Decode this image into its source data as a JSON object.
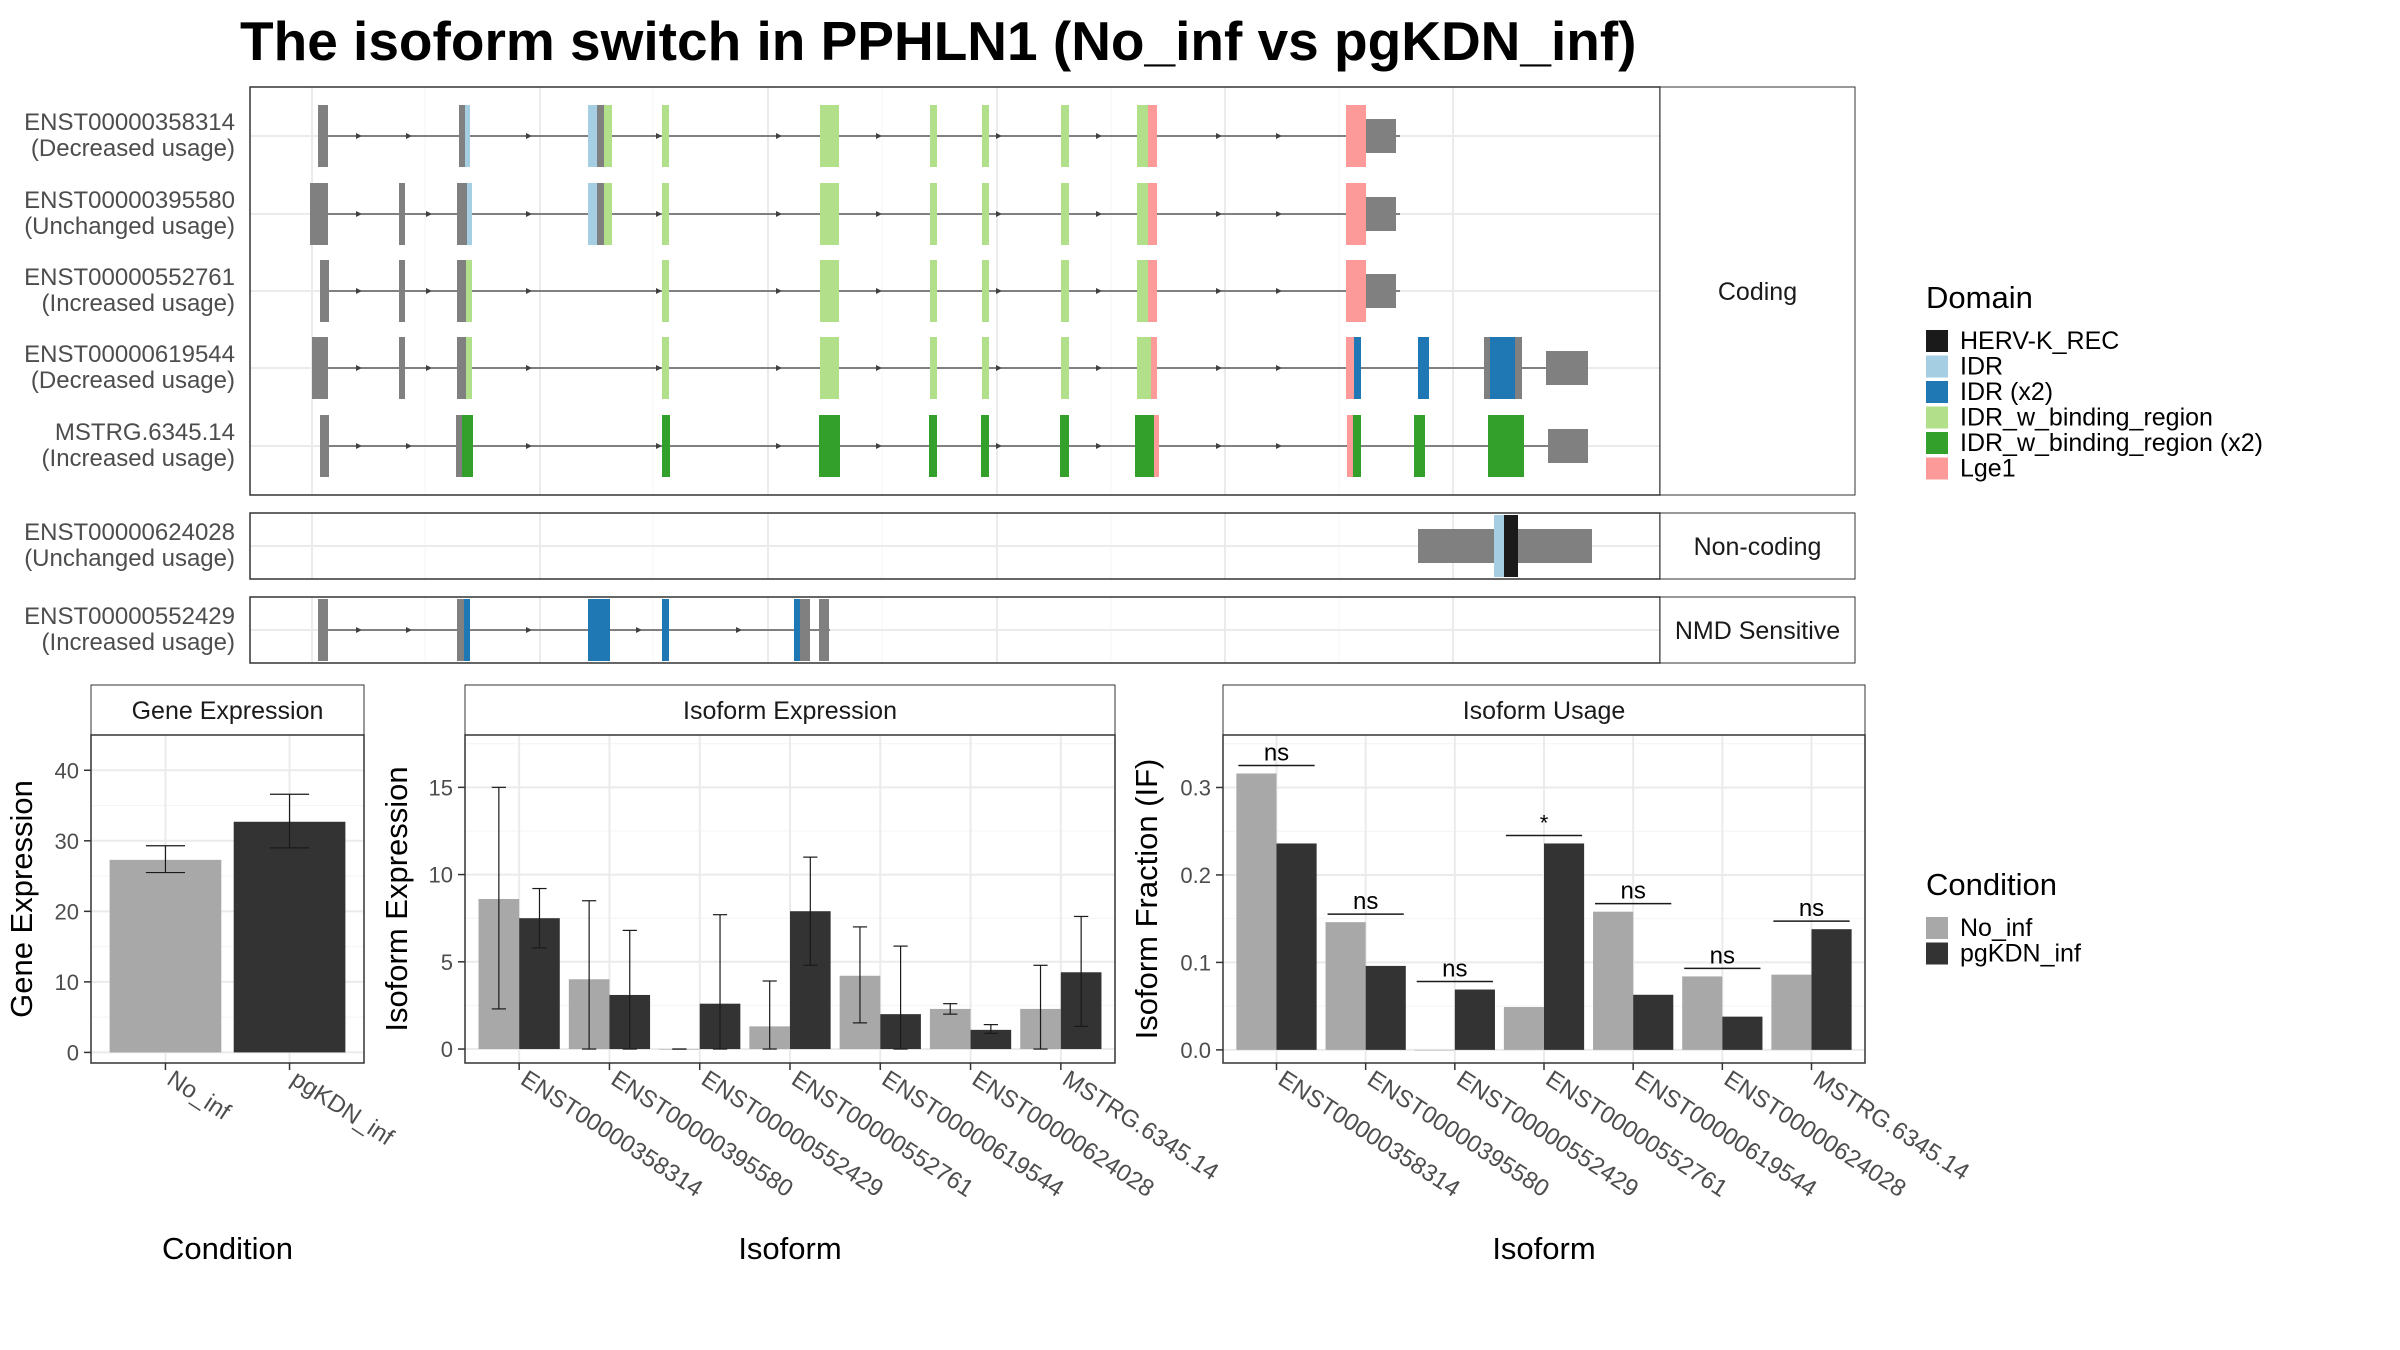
{
  "title": "The isoform switch in PPHLN1 (No_inf vs pgKDN_inf)",
  "colors": {
    "no_inf": "#a8a8a8",
    "pgkdn_inf": "#333333",
    "exon": "#808080",
    "HERV-K_REC": "#1a1a1a",
    "IDR": "#a6cee3",
    "IDR_x2": "#1f78b4",
    "IDR_w_binding_region": "#b2df8a",
    "IDR_w_binding_region_x2": "#33a02c",
    "Lge1": "#fb9a99"
  },
  "domain_legend": {
    "title": "Domain",
    "items": [
      {
        "label": "HERV-K_REC",
        "color": "#1a1a1a"
      },
      {
        "label": "IDR",
        "color": "#a6cee3"
      },
      {
        "label": "IDR (x2)",
        "color": "#1f78b4"
      },
      {
        "label": "IDR_w_binding_region",
        "color": "#b2df8a"
      },
      {
        "label": "IDR_w_binding_region (x2)",
        "color": "#33a02c"
      },
      {
        "label": "Lge1",
        "color": "#fb9a99"
      }
    ]
  },
  "condition_legend": {
    "title": "Condition",
    "items": [
      {
        "label": "No_inf",
        "color": "#a8a8a8"
      },
      {
        "label": "pgKDN_inf",
        "color": "#333333"
      }
    ]
  },
  "structure": {
    "panels": [
      {
        "label": "Coding",
        "isoforms": [
          {
            "id": "ENST00000358314",
            "usage": "(Decreased usage)"
          },
          {
            "id": "ENST00000395580",
            "usage": "(Unchanged usage)"
          },
          {
            "id": "ENST00000552761",
            "usage": "(Increased usage)"
          },
          {
            "id": "ENST00000619544",
            "usage": "(Decreased usage)"
          },
          {
            "id": "MSTRG.6345.14",
            "usage": "(Increased usage)"
          }
        ]
      },
      {
        "label": "Non-coding",
        "isoforms": [
          {
            "id": "ENST00000624028",
            "usage": "(Unchanged usage)"
          }
        ]
      },
      {
        "label": "NMD Sensitive",
        "isoforms": [
          {
            "id": "ENST00000552429",
            "usage": "(Increased usage)"
          }
        ]
      }
    ]
  },
  "chart_data": [
    {
      "type": "bar",
      "strip": "Gene Expression",
      "xlabel": "Condition",
      "ylabel": "Gene Expression",
      "categories": [
        "No_inf",
        "pgKDN_inf"
      ],
      "values": [
        27.3,
        32.7
      ],
      "error_low": [
        25.5,
        29.0
      ],
      "error_high": [
        29.3,
        36.6
      ],
      "ylim": [
        -1.5,
        45
      ],
      "yticks": [
        0,
        10,
        20,
        30,
        40
      ],
      "grid": true
    },
    {
      "type": "bar",
      "strip": "Isoform Expression",
      "xlabel": "Isoform",
      "ylabel": "Isoform Expression",
      "categories": [
        "ENST00000358314",
        "ENST00000395580",
        "ENST00000552429",
        "ENST00000552761",
        "ENST00000619544",
        "ENST00000624028",
        "MSTRG.6345.14"
      ],
      "series": [
        {
          "name": "No_inf",
          "values": [
            8.6,
            4.0,
            0.0,
            1.3,
            4.2,
            2.3,
            2.3
          ],
          "error_low": [
            2.3,
            0.0,
            0.0,
            0.0,
            1.5,
            2.0,
            0.0
          ],
          "error_high": [
            15.0,
            8.5,
            0.0,
            3.9,
            7.0,
            2.6,
            4.8
          ]
        },
        {
          "name": "pgKDN_inf",
          "values": [
            7.5,
            3.1,
            2.6,
            7.9,
            2.0,
            1.1,
            4.4
          ],
          "error_low": [
            5.8,
            0.0,
            0.0,
            4.8,
            0.0,
            0.9,
            1.3
          ],
          "error_high": [
            9.2,
            6.8,
            7.7,
            11.0,
            5.9,
            1.4,
            7.6
          ]
        }
      ],
      "ylim": [
        -0.8,
        18
      ],
      "yticks": [
        0,
        5,
        10,
        15
      ],
      "grid": true
    },
    {
      "type": "bar",
      "strip": "Isoform Usage",
      "xlabel": "Isoform",
      "ylabel": "Isoform Fraction (IF)",
      "categories": [
        "ENST00000358314",
        "ENST00000395580",
        "ENST00000552429",
        "ENST00000552761",
        "ENST00000619544",
        "ENST00000624028",
        "MSTRG.6345.14"
      ],
      "series": [
        {
          "name": "No_inf",
          "values": [
            0.316,
            0.146,
            0.0,
            0.049,
            0.158,
            0.084,
            0.086
          ]
        },
        {
          "name": "pgKDN_inf",
          "values": [
            0.236,
            0.096,
            0.069,
            0.236,
            0.063,
            0.038,
            0.138
          ]
        }
      ],
      "significance": [
        "ns",
        "ns",
        "ns",
        "*",
        "ns",
        "ns",
        "ns"
      ],
      "ylim": [
        -0.015,
        0.36
      ],
      "yticks": [
        0.0,
        0.1,
        0.2,
        0.3
      ],
      "grid": true
    }
  ]
}
